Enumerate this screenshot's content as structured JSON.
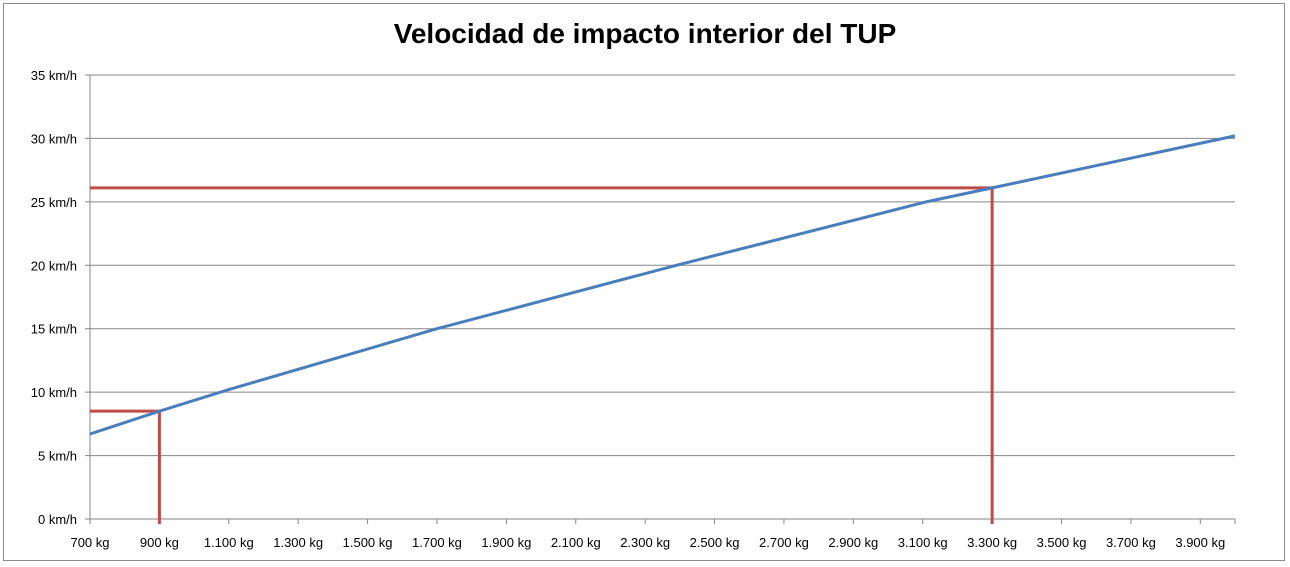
{
  "chart_data": {
    "type": "line",
    "title": "Velocidad de impacto interior del TUP",
    "xlabel": "",
    "ylabel": "",
    "xlim": [
      700,
      4000
    ],
    "ylim": [
      0,
      35
    ],
    "x_ticks": [
      700,
      900,
      1100,
      1300,
      1500,
      1700,
      1900,
      2100,
      2300,
      2500,
      2700,
      2900,
      3100,
      3300,
      3500,
      3700,
      3900
    ],
    "x_tick_labels": [
      "700 kg",
      "900 kg",
      "1.100 kg",
      "1.300 kg",
      "1.500 kg",
      "1.700 kg",
      "1.900 kg",
      "2.100 kg",
      "2.300 kg",
      "2.500 kg",
      "2.700 kg",
      "2.900 kg",
      "3.100 kg",
      "3.300 kg",
      "3.500 kg",
      "3.700 kg",
      "3.900 kg"
    ],
    "y_ticks": [
      0,
      5,
      10,
      15,
      20,
      25,
      30,
      35
    ],
    "y_tick_labels": [
      "0 km/h",
      "5 km/h",
      "10 km/h",
      "15 km/h",
      "20 km/h",
      "25 km/h",
      "30 km/h",
      "35 km/h"
    ],
    "grid": "horizontal",
    "series": [
      {
        "color": "#4a7ebb",
        "x": [
          700,
          900,
          1100,
          1700,
          2390,
          3110,
          3300,
          4000
        ],
        "y": [
          6.7,
          8.5,
          10.2,
          15,
          20,
          25,
          26.1,
          30.2
        ]
      }
    ],
    "markers": [
      {
        "x": 900,
        "y": 8.5,
        "color": "#be4b48"
      },
      {
        "x": 3300,
        "y": 26.1,
        "color": "#be4b48"
      }
    ]
  }
}
